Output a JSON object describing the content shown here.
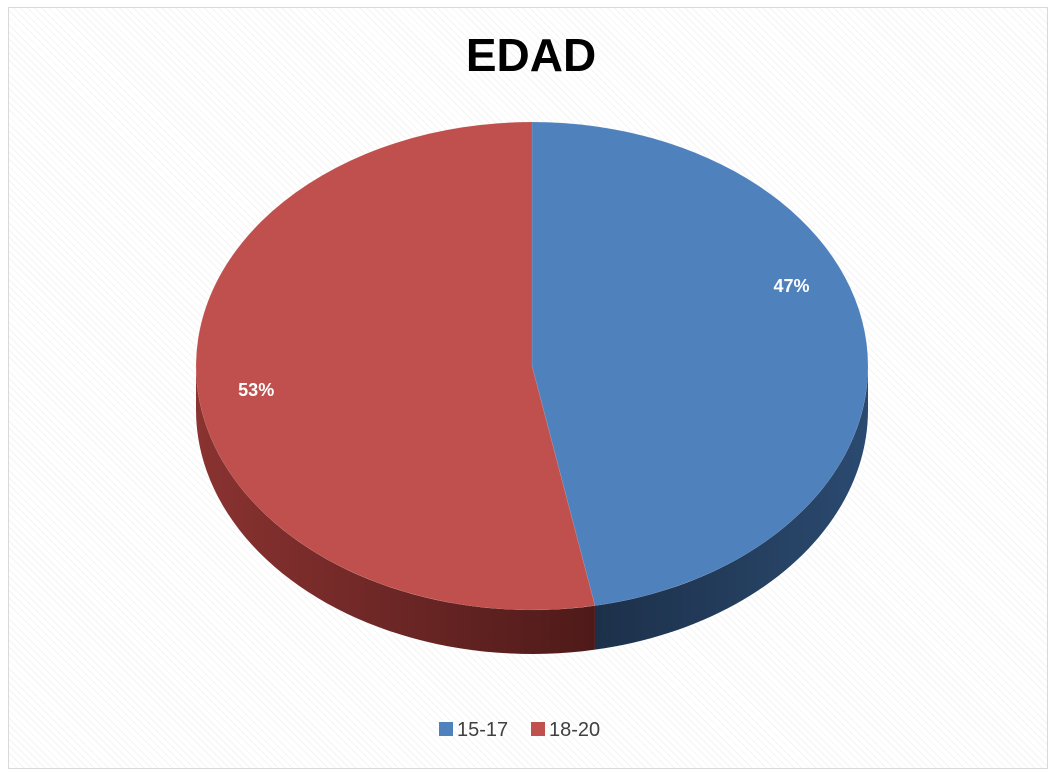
{
  "chart_data": {
    "type": "pie",
    "title": "EDAD",
    "categories": [
      "15-17",
      "18-20"
    ],
    "values": [
      47,
      53
    ],
    "labels": [
      "47%",
      "53%"
    ],
    "colors": [
      "#4f81bd",
      "#c0504d"
    ],
    "side_colors": [
      "#1f3550",
      "#6a2322"
    ],
    "legend_position": "bottom",
    "style": "3d"
  }
}
